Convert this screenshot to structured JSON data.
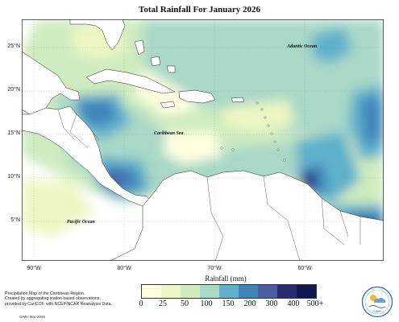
{
  "title": "Total Rainfall For January 2026",
  "map": {
    "lat_labels": [
      "25°N",
      "20°N",
      "15°N",
      "10°N",
      "5°N"
    ],
    "lon_labels": [
      "90°W",
      "80°W",
      "70°W",
      "60°W"
    ],
    "x_axis_label": "Rainfall (mm)",
    "region_labels": {
      "atlantic": "Atlantic Ocean",
      "caribbean": "Caribbean Sea",
      "pacific": "Pacific Ocean"
    }
  },
  "legend": {
    "ticks": [
      "0",
      "25",
      "50",
      "100",
      "150",
      "200",
      "300",
      "400",
      "500+"
    ],
    "colors": [
      "#ffffe0",
      "#eef7c3",
      "#cfebbf",
      "#a9d8c7",
      "#5fb1cc",
      "#3f86bb",
      "#4d5aa5",
      "#2b2a77",
      "#0f1850"
    ]
  },
  "credit": {
    "line1": "Precipitation Map of the Caribbean Region.",
    "line2": "Created by aggregating station based observations,",
    "line3": "provided by CariCOF, with NCEP/NCAR Reanalysis Data.",
    "line4": "CIMH Mar-2026"
  },
  "logo_text": "CIMH"
}
